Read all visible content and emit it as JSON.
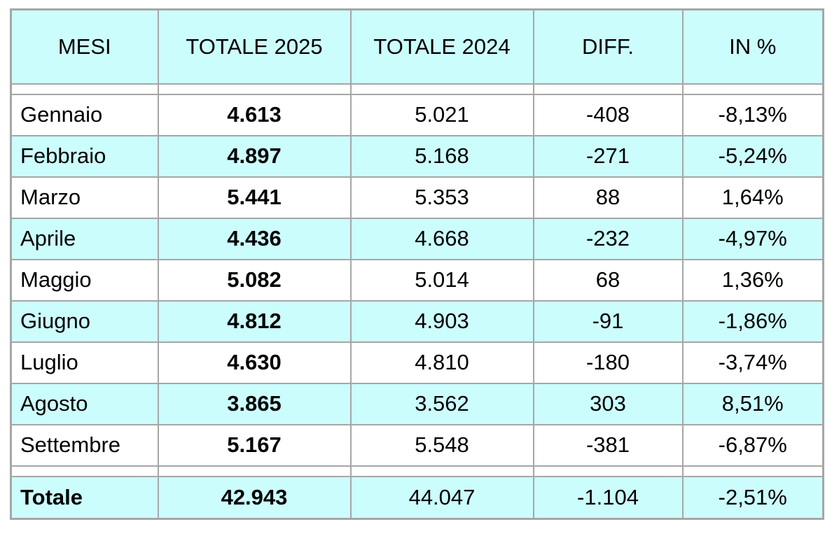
{
  "colors": {
    "highlight_bg": "#ccfdfd",
    "border": "#a6a6a6",
    "text": "#000000"
  },
  "table": {
    "columns": [
      {
        "label": "MESI",
        "bold": true
      },
      {
        "label": "TOTALE 2025",
        "bold": true
      },
      {
        "label": "TOTALE 2024",
        "bold": false
      },
      {
        "label": "DIFF.",
        "bold": false
      },
      {
        "label": "IN %",
        "bold": false
      }
    ],
    "rows": [
      {
        "month": "Gennaio",
        "total_2025": "4.613",
        "total_2024": "5.021",
        "diff": "-408",
        "pct": "-8,13%"
      },
      {
        "month": "Febbraio",
        "total_2025": "4.897",
        "total_2024": "5.168",
        "diff": "-271",
        "pct": "-5,24%"
      },
      {
        "month": "Marzo",
        "total_2025": "5.441",
        "total_2024": "5.353",
        "diff": "88",
        "pct": "1,64%"
      },
      {
        "month": "Aprile",
        "total_2025": "4.436",
        "total_2024": "4.668",
        "diff": "-232",
        "pct": "-4,97%"
      },
      {
        "month": "Maggio",
        "total_2025": "5.082",
        "total_2024": "5.014",
        "diff": "68",
        "pct": "1,36%"
      },
      {
        "month": "Giugno",
        "total_2025": "4.812",
        "total_2024": "4.903",
        "diff": "-91",
        "pct": "-1,86%"
      },
      {
        "month": "Luglio",
        "total_2025": "4.630",
        "total_2024": "4.810",
        "diff": "-180",
        "pct": "-3,74%"
      },
      {
        "month": "Agosto",
        "total_2025": "3.865",
        "total_2024": "3.562",
        "diff": "303",
        "pct": "8,51%"
      },
      {
        "month": "Settembre",
        "total_2025": "5.167",
        "total_2024": "5.548",
        "diff": "-381",
        "pct": "-6,87%"
      }
    ],
    "total_row": {
      "month": "Totale",
      "total_2025": "42.943",
      "total_2024": "44.047",
      "diff": "-1.104",
      "pct": "-2,51%"
    }
  },
  "chart_data": {
    "type": "table",
    "columns": [
      "MESI",
      "TOTALE 2025",
      "TOTALE 2024",
      "DIFF.",
      "IN %"
    ],
    "rows": [
      {
        "mese": "Gennaio",
        "totale_2025": 4613,
        "totale_2024": 5021,
        "diff": -408,
        "in_pct": -8.13
      },
      {
        "mese": "Febbraio",
        "totale_2025": 4897,
        "totale_2024": 5168,
        "diff": -271,
        "in_pct": -5.24
      },
      {
        "mese": "Marzo",
        "totale_2025": 5441,
        "totale_2024": 5353,
        "diff": 88,
        "in_pct": 1.64
      },
      {
        "mese": "Aprile",
        "totale_2025": 4436,
        "totale_2024": 4668,
        "diff": -232,
        "in_pct": -4.97
      },
      {
        "mese": "Maggio",
        "totale_2025": 5082,
        "totale_2024": 5014,
        "diff": 68,
        "in_pct": 1.36
      },
      {
        "mese": "Giugno",
        "totale_2025": 4812,
        "totale_2024": 4903,
        "diff": -91,
        "in_pct": -1.86
      },
      {
        "mese": "Luglio",
        "totale_2025": 4630,
        "totale_2024": 4810,
        "diff": -180,
        "in_pct": -3.74
      },
      {
        "mese": "Agosto",
        "totale_2025": 3865,
        "totale_2024": 3562,
        "diff": 303,
        "in_pct": 8.51
      },
      {
        "mese": "Settembre",
        "totale_2025": 5167,
        "totale_2024": 5548,
        "diff": -381,
        "in_pct": -6.87
      }
    ],
    "totals": {
      "mese": "Totale",
      "totale_2025": 42943,
      "totale_2024": 44047,
      "diff": -1104,
      "in_pct": -2.51
    }
  }
}
